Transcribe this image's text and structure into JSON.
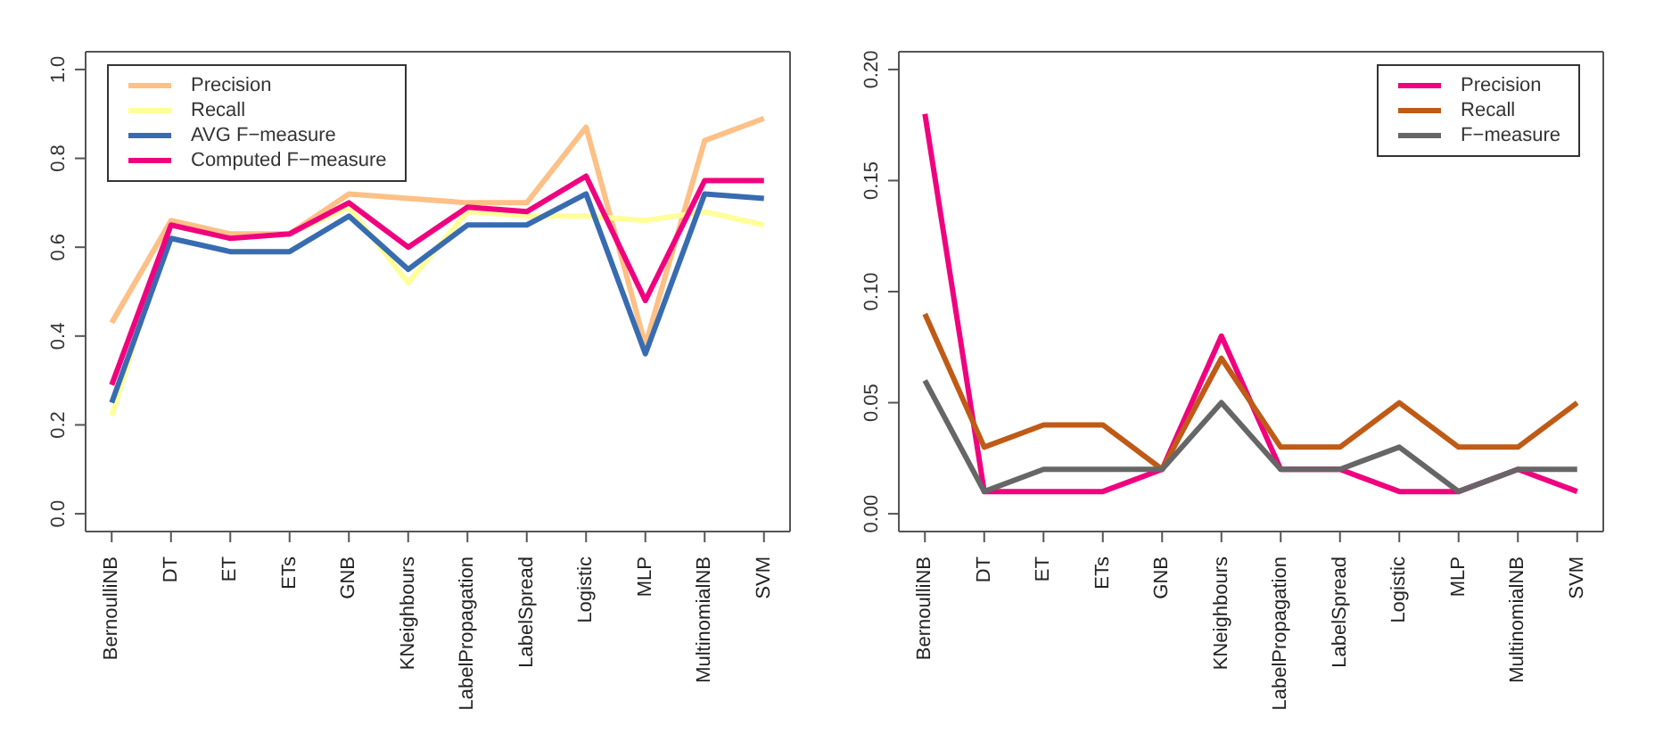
{
  "chart_data": [
    {
      "type": "line",
      "categories": [
        "BernoulliNB",
        "DT",
        "ET",
        "ETs",
        "GNB",
        "KNeighbours",
        "LabelPropagation",
        "LabelSpread",
        "Logistic",
        "MLP",
        "MultinomialNB",
        "SVM"
      ],
      "series": [
        {
          "name": "Precision",
          "color": "#fdc086",
          "values": [
            0.43,
            0.66,
            0.63,
            0.63,
            0.72,
            0.71,
            0.7,
            0.7,
            0.87,
            0.38,
            0.84,
            0.89
          ]
        },
        {
          "name": "Recall",
          "color": "#ffff99",
          "values": [
            0.22,
            0.65,
            0.62,
            0.63,
            0.69,
            0.52,
            0.68,
            0.67,
            0.67,
            0.66,
            0.68,
            0.65
          ]
        },
        {
          "name": "AVG F−measure",
          "color": "#386cb0",
          "values": [
            0.25,
            0.62,
            0.59,
            0.59,
            0.67,
            0.55,
            0.65,
            0.65,
            0.72,
            0.36,
            0.72,
            0.71
          ]
        },
        {
          "name": "Computed F−measure",
          "color": "#f0027f",
          "values": [
            0.29,
            0.65,
            0.62,
            0.63,
            0.7,
            0.6,
            0.69,
            0.68,
            0.76,
            0.48,
            0.75,
            0.75
          ]
        }
      ],
      "ylim": [
        -0.04,
        1.04
      ],
      "yticks": [
        {
          "value": 0,
          "label": "0.0"
        },
        0.2,
        0.4,
        0.6,
        0.8,
        {
          "value": 1,
          "label": "1.0"
        }
      ],
      "grid": false,
      "legend": "top left",
      "marker": "none",
      "line_style": "solid"
    },
    {
      "type": "line",
      "categories": [
        "BernoulliNB",
        "DT",
        "ET",
        "ETs",
        "GNB",
        "KNeighbours",
        "LabelPropagation",
        "LabelSpread",
        "Logistic",
        "MLP",
        "MultinomialNB",
        "SVM"
      ],
      "series": [
        {
          "name": "Precision",
          "color": "#f0027f",
          "values": [
            0.18,
            0.01,
            0.01,
            0.01,
            0.02,
            0.08,
            0.02,
            0.02,
            0.01,
            0.01,
            0.02,
            0.01
          ]
        },
        {
          "name": "Recall",
          "color": "#bf5b17",
          "values": [
            0.09,
            0.03,
            0.04,
            0.04,
            0.02,
            0.07,
            0.03,
            0.03,
            0.05,
            0.03,
            0.03,
            0.05
          ]
        },
        {
          "name": "F−measure",
          "color": "#666666",
          "values": [
            0.06,
            0.01,
            0.02,
            0.02,
            0.02,
            0.05,
            0.02,
            0.02,
            0.03,
            0.01,
            0.02,
            0.02
          ]
        }
      ],
      "ylim": [
        -0.008,
        0.208
      ],
      "yticks": [
        {
          "value": 0,
          "label": "0.00"
        },
        0.05,
        {
          "value": 0.1,
          "label": "0.10"
        },
        0.15,
        {
          "value": 0.2,
          "label": "0.20"
        }
      ],
      "grid": false,
      "legend": "top right",
      "marker": "none",
      "line_style": "solid"
    }
  ]
}
